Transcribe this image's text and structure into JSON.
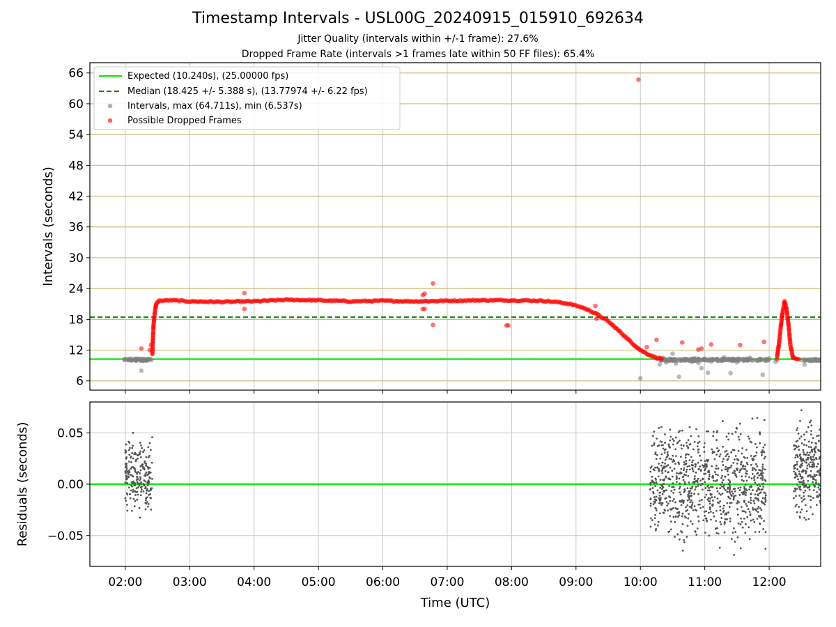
{
  "figure": {
    "title": "Timestamp Intervals - USL00G_20240915_015910_692634",
    "subtitle_1": "Jitter Quality (intervals within +/-1 frame): 27.6%",
    "subtitle_2": "Dropped Frame Rate (intervals >1 frames late within 50 FF files): 65.4%",
    "xlabel": "Time (UTC)"
  },
  "colors": {
    "expected": "#00ee00",
    "median": "#008000",
    "intervals": "#808080",
    "dropped": "#ff0000",
    "residuals": "#555555",
    "h_grid": "#d2b97a",
    "v_grid": "#c8c8c8"
  },
  "chart_data": [
    {
      "type": "scatter",
      "ylabel": "Intervals (seconds)",
      "x_unit": "hours UTC",
      "xlim": [
        1.45,
        12.8
      ],
      "ylim": [
        4.2,
        68.0
      ],
      "x_ticks": [
        2,
        3,
        4,
        5,
        6,
        7,
        8,
        9,
        10,
        11,
        12
      ],
      "y_ticks": [
        6,
        12,
        18,
        24,
        30,
        36,
        42,
        48,
        54,
        60,
        66
      ],
      "y_tick_labels": [
        "6",
        "12",
        "18",
        "24",
        "30",
        "36",
        "42",
        "48",
        "54",
        "60",
        "66"
      ],
      "grid": true,
      "legend_position": "upper-left",
      "lines": [
        {
          "name": "Expected (10.240s), (25.00000 fps)",
          "y": 10.24,
          "style": "solid"
        },
        {
          "name": "Median (18.425 +/- 5.388 s), (13.77974 +/- 6.22 fps)",
          "y": 18.425,
          "style": "dashed"
        }
      ],
      "series": [
        {
          "name": "Intervals, max (64.711s), min (6.537s)",
          "points": [
            [
              2.0,
              10.3
            ],
            [
              2.05,
              10.2
            ],
            [
              2.1,
              10.35
            ],
            [
              2.15,
              10.25
            ],
            [
              2.2,
              10.3
            ],
            [
              2.25,
              8.0
            ],
            [
              2.3,
              10.2
            ],
            [
              2.35,
              10.3
            ],
            [
              10.3,
              9.2
            ],
            [
              10.35,
              10.5
            ],
            [
              10.4,
              9.6
            ],
            [
              10.48,
              10.1
            ],
            [
              10.5,
              11.3
            ],
            [
              10.55,
              9.4
            ],
            [
              10.6,
              6.8
            ],
            [
              10.7,
              10.1
            ],
            [
              10.8,
              9.7
            ],
            [
              10.85,
              10.4
            ],
            [
              10.9,
              9.5
            ],
            [
              10.95,
              8.5
            ],
            [
              11.0,
              10.3
            ],
            [
              11.05,
              7.6
            ],
            [
              11.1,
              9.8
            ],
            [
              11.2,
              9.9
            ],
            [
              11.3,
              10.6
            ],
            [
              11.38,
              10.0
            ],
            [
              11.4,
              7.5
            ],
            [
              11.5,
              9.6
            ],
            [
              11.6,
              10.2
            ],
            [
              11.7,
              10.5
            ],
            [
              11.8,
              10.0
            ],
            [
              11.9,
              7.2
            ],
            [
              12.0,
              10.4
            ],
            [
              12.1,
              9.7
            ],
            [
              12.55,
              9.2
            ],
            [
              12.6,
              10.1
            ],
            [
              10.0,
              6.5
            ],
            [
              12.8,
              10.2
            ]
          ]
        },
        {
          "name": "Possible Dropped Frames",
          "points": [
            [
              2.25,
              12.3
            ],
            [
              3.85,
              23.1
            ],
            [
              3.85,
              20.0
            ],
            [
              6.62,
              22.7
            ],
            [
              6.65,
              23.0
            ],
            [
              6.62,
              20.0
            ],
            [
              6.65,
              20.0
            ],
            [
              6.78,
              25.0
            ],
            [
              6.78,
              16.9
            ],
            [
              7.92,
              16.8
            ],
            [
              7.95,
              16.8
            ],
            [
              9.3,
              20.6
            ],
            [
              9.32,
              18.1
            ],
            [
              9.97,
              64.7
            ],
            [
              10.1,
              12.6
            ],
            [
              10.25,
              14.0
            ],
            [
              10.65,
              13.5
            ],
            [
              10.9,
              12.1
            ],
            [
              10.95,
              12.3
            ],
            [
              11.1,
              13.1
            ],
            [
              11.55,
              13.0
            ],
            [
              11.92,
              13.6
            ],
            [
              2.38,
              12.0
            ],
            [
              2.4,
              13.0
            ]
          ]
        }
      ],
      "curves": [
        {
          "name": "Possible Dropped Frames (dense run)",
          "points": [
            [
              2.42,
              11.2
            ],
            [
              2.43,
              14.5
            ],
            [
              2.44,
              17.0
            ],
            [
              2.46,
              19.5
            ],
            [
              2.48,
              21.0
            ],
            [
              2.52,
              21.6
            ],
            [
              2.7,
              21.7
            ],
            [
              3.0,
              21.5
            ],
            [
              3.5,
              21.4
            ],
            [
              4.0,
              21.5
            ],
            [
              4.5,
              21.8
            ],
            [
              5.0,
              21.7
            ],
            [
              5.5,
              21.5
            ],
            [
              6.0,
              21.6
            ],
            [
              6.5,
              21.5
            ],
            [
              7.0,
              21.6
            ],
            [
              7.5,
              21.7
            ],
            [
              8.0,
              21.7
            ],
            [
              8.5,
              21.6
            ],
            [
              8.75,
              21.3
            ],
            [
              8.9,
              21.0
            ],
            [
              9.1,
              20.3
            ],
            [
              9.3,
              19.2
            ],
            [
              9.5,
              17.6
            ],
            [
              9.7,
              15.4
            ],
            [
              9.85,
              13.6
            ],
            [
              10.0,
              12.0
            ],
            [
              10.15,
              11.0
            ],
            [
              10.25,
              10.5
            ],
            [
              10.35,
              10.3
            ]
          ]
        },
        {
          "name": "Possible Dropped Frames (spike)",
          "points": [
            [
              12.12,
              10.3
            ],
            [
              12.15,
              13.0
            ],
            [
              12.18,
              16.5
            ],
            [
              12.21,
              19.5
            ],
            [
              12.24,
              21.5
            ],
            [
              12.27,
              20.0
            ],
            [
              12.3,
              17.0
            ],
            [
              12.33,
              13.0
            ],
            [
              12.37,
              10.5
            ],
            [
              12.4,
              10.3
            ],
            [
              12.48,
              10.3
            ]
          ]
        }
      ]
    },
    {
      "type": "scatter",
      "ylabel": "Residuals (seconds)",
      "x_unit": "hours UTC",
      "xlim": [
        1.45,
        12.8
      ],
      "ylim": [
        -0.08,
        0.08
      ],
      "x_ticks": [
        2,
        3,
        4,
        5,
        6,
        7,
        8,
        9,
        10,
        11,
        12
      ],
      "x_tick_labels": [
        "02:00",
        "03:00",
        "04:00",
        "05:00",
        "06:00",
        "07:00",
        "08:00",
        "09:00",
        "10:00",
        "11:00",
        "12:00"
      ],
      "y_ticks": [
        -0.05,
        0.0,
        0.05
      ],
      "y_tick_labels": [
        "−0.05",
        "0.00",
        "0.05"
      ],
      "grid": true,
      "zero_line": 0.0,
      "clusters": [
        {
          "x_range": [
            2.0,
            2.42
          ],
          "y_range": [
            -0.04,
            0.056
          ],
          "density": 220
        },
        {
          "x_range": [
            10.15,
            11.95
          ],
          "y_range": [
            -0.077,
            0.077
          ],
          "density": 900
        },
        {
          "x_range": [
            12.38,
            12.8
          ],
          "y_range": [
            -0.048,
            0.077
          ],
          "density": 260
        }
      ]
    }
  ]
}
